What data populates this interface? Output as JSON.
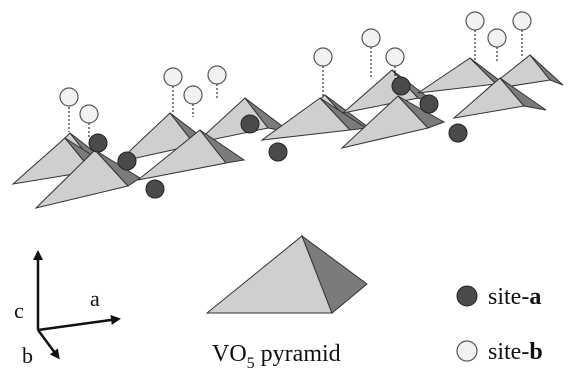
{
  "colors": {
    "light_face": "#cfcfcf",
    "dark_face": "#7b7b7b",
    "site_a": "#4a4a4a",
    "site_b": "#f2f2f2",
    "stroke": "#333333"
  },
  "axes": {
    "a": "a",
    "b": "b",
    "c": "c"
  },
  "legend": {
    "pyramid": {
      "prefix": "VO",
      "subscript": "5",
      "suffix": " pyramid"
    },
    "site_a": {
      "prefix": "site-",
      "letter": "a"
    },
    "site_b": {
      "prefix": "site-",
      "letter": "b"
    }
  }
}
